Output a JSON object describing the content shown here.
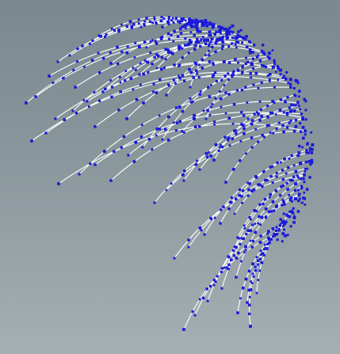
{
  "scene": {
    "background_top": "#79898f",
    "background_bottom": "#a6afb3",
    "line_color": "#ffffff",
    "node_color": "#1a1ad8",
    "node_count_per_strand": 12
  }
}
